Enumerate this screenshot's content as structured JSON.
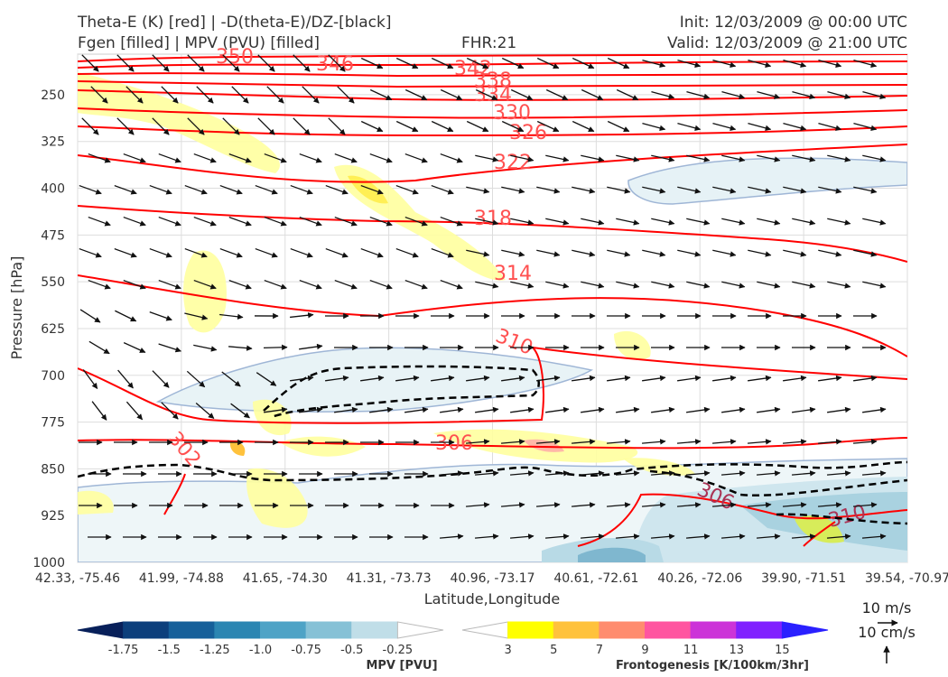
{
  "header": {
    "title_line1": "Theta-E (K) [red] | -D(theta-E)/DZ-[black]",
    "title_line2": "Fgen [filled] | MPV (PVU) [filled]",
    "fhr": "FHR:21",
    "init": "Init: 12/03/2009 @ 00:00 UTC",
    "valid": "Valid: 12/03/2009 @ 21:00 UTC"
  },
  "chart_data": {
    "type": "cross-section",
    "xlabel": "Latitude,Longitude",
    "ylabel": "Pressure [hPa]",
    "x_ticks": [
      "42.33, -75.46",
      "41.99, -74.88",
      "41.65, -74.30",
      "41.31, -73.73",
      "40.96, -73.17",
      "40.61, -72.61",
      "40.26, -72.06",
      "39.90, -71.51",
      "39.54, -70.97"
    ],
    "y_ticks": [
      250,
      325,
      400,
      475,
      550,
      625,
      700,
      775,
      850,
      925,
      1000
    ],
    "ylim": [
      1000,
      185
    ],
    "y_scale": "linear, inverted",
    "grid": true,
    "theta_e_contours": {
      "color": "#ff0000",
      "labels": [
        "350",
        "346",
        "342",
        "338",
        "334",
        "330",
        "326",
        "322",
        "318",
        "314",
        "310",
        "306",
        "302",
        "306",
        "310"
      ]
    },
    "stability_contour": {
      "color": "#000000",
      "style": "dashed"
    },
    "mpv_colorbar": {
      "label": "MPV [PVU]",
      "ticks": [
        "-1.75",
        "-1.5",
        "-1.25",
        "-1.0",
        "-0.75",
        "-0.5",
        "-0.25"
      ],
      "colors": [
        "#08205a",
        "#0c3f7c",
        "#16609a",
        "#2b86b2",
        "#4ea3c6",
        "#86c1d6",
        "#c0dee8",
        "#ffffff"
      ]
    },
    "fgen_colorbar": {
      "label": "Frontogenesis [K/100km/3hr]",
      "ticks": [
        "3",
        "5",
        "7",
        "9",
        "11",
        "13",
        "15"
      ],
      "colors": [
        "#ffffff",
        "#ffff00",
        "#ffc23c",
        "#ff8c6e",
        "#ff55a0",
        "#cc33d8",
        "#8020ff",
        "#2a20ff"
      ]
    },
    "wind_key": {
      "horizontal": "10 m/s",
      "vertical": "10 cm/s"
    }
  }
}
